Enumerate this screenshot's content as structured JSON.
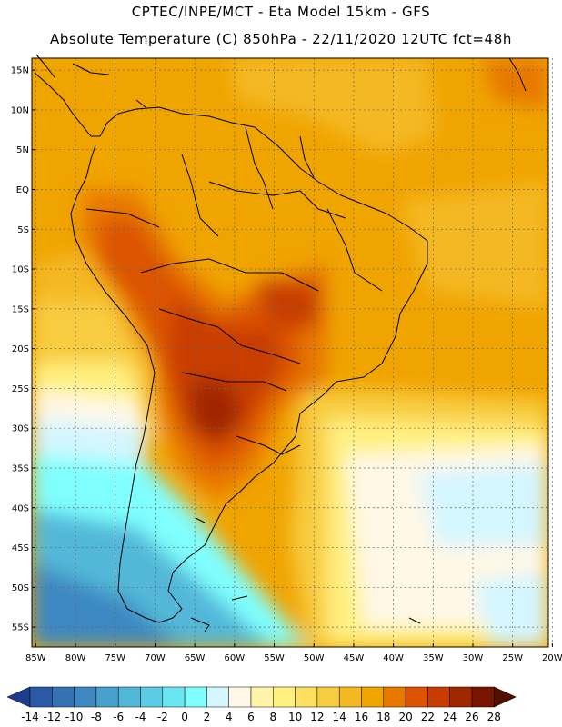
{
  "header": {
    "line1": "CPTEC/INPE/MCT -  Eta Model 15km - GFS",
    "line2": "Absolute Temperature (C) 850hPa - 22/11/2020 12UTC fct=48h"
  },
  "axes": {
    "lat_labels": [
      "15N",
      "10N",
      "5N",
      "EQ",
      "5S",
      "10S",
      "15S",
      "20S",
      "25S",
      "30S",
      "35S",
      "40S",
      "45S",
      "50S",
      "55S"
    ],
    "lat_values": [
      15,
      10,
      5,
      0,
      -5,
      -10,
      -15,
      -20,
      -25,
      -30,
      -35,
      -40,
      -45,
      -50,
      -55
    ],
    "lon_labels": [
      "85W",
      "80W",
      "75W",
      "70W",
      "65W",
      "60W",
      "55W",
      "50W",
      "45W",
      "40W",
      "35W",
      "30W",
      "25W",
      "20W"
    ],
    "lon_values": [
      -85,
      -80,
      -75,
      -70,
      -65,
      -60,
      -55,
      -50,
      -45,
      -40,
      -35,
      -30,
      -25,
      -20
    ],
    "lat_range": [
      -57.5,
      16.5
    ],
    "lon_range": [
      -85.5,
      -20.5
    ],
    "grid": "dotted"
  },
  "colorbar": {
    "labels": [
      "-14",
      "-12",
      "-10",
      "-8",
      "-6",
      "-4",
      "-2",
      "0",
      "2",
      "4",
      "6",
      "8",
      "10",
      "12",
      "14",
      "16",
      "18",
      "20",
      "22",
      "24",
      "26",
      "28"
    ],
    "colors": [
      "#1e3c8c",
      "#2a5aa6",
      "#3472b4",
      "#3e88c2",
      "#48a0cc",
      "#52b8d8",
      "#5ccce4",
      "#6ae6f2",
      "#80ffff",
      "#d4f6ff",
      "#fff8e6",
      "#fff4a8",
      "#fff080",
      "#fce060",
      "#f8cc40",
      "#f4b820",
      "#f0a400",
      "#e87800",
      "#dc5400",
      "#c83c00",
      "#a02800",
      "#781400",
      "#501000"
    ]
  }
}
